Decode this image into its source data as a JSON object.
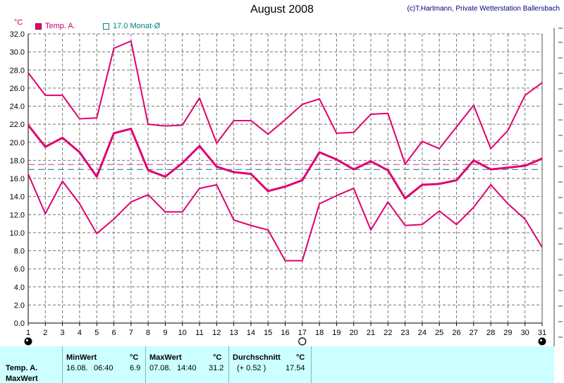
{
  "header": {
    "title": "August 2008",
    "credit": "(c)T.Hartmann, Private Wetterstation Ballersbach",
    "unit": "°C"
  },
  "legend": [
    {
      "label": "Temp. A.",
      "color": "#e0006f"
    },
    {
      "label": "17.0 Monat-Ø",
      "color": "#00807a"
    }
  ],
  "chart_data": {
    "type": "line",
    "x": [
      1,
      2,
      3,
      4,
      5,
      6,
      7,
      8,
      9,
      10,
      11,
      12,
      13,
      14,
      15,
      16,
      17,
      18,
      19,
      20,
      21,
      22,
      23,
      24,
      25,
      26,
      27,
      28,
      29,
      30,
      31
    ],
    "xlim": [
      1,
      31
    ],
    "ylim": [
      0,
      32
    ],
    "yticks": [
      "0.0",
      "2.0",
      "4.0",
      "6.0",
      "8.0",
      "10.0",
      "12.0",
      "14.0",
      "16.0",
      "18.0",
      "20.0",
      "22.0",
      "24.0",
      "26.0",
      "28.0",
      "30.0",
      "32.0"
    ],
    "grid": true,
    "series": [
      {
        "role": "max",
        "color": "#e0006f",
        "width": 2,
        "values": [
          27.7,
          25.2,
          25.2,
          22.6,
          22.7,
          30.4,
          31.2,
          22.0,
          21.8,
          21.9,
          24.9,
          19.9,
          22.4,
          22.4,
          20.9,
          22.5,
          24.2,
          24.8,
          21.0,
          21.1,
          23.1,
          23.2,
          17.6,
          20.1,
          19.3,
          21.7,
          24.1,
          19.3,
          21.3,
          25.2,
          26.6
        ]
      },
      {
        "role": "mean",
        "color": "#e0006f",
        "width": 3,
        "values": [
          21.9,
          19.5,
          20.5,
          18.9,
          16.2,
          21.0,
          21.5,
          16.9,
          16.2,
          17.7,
          19.6,
          17.3,
          16.7,
          16.5,
          14.6,
          15.1,
          15.8,
          18.9,
          18.1,
          17.0,
          17.9,
          16.9,
          13.8,
          15.3,
          15.4,
          15.8,
          18.0,
          17.0,
          17.2,
          17.4,
          18.2
        ]
      },
      {
        "role": "min",
        "color": "#e0006f",
        "width": 2,
        "values": [
          16.5,
          12.1,
          15.7,
          13.2,
          9.9,
          11.5,
          13.4,
          14.2,
          12.3,
          12.3,
          14.9,
          15.3,
          11.4,
          10.8,
          10.3,
          6.9,
          6.9,
          13.2,
          14.1,
          14.9,
          10.3,
          13.4,
          10.8,
          10.9,
          12.4,
          10.9,
          12.8,
          15.3,
          13.2,
          11.5,
          8.4
        ]
      }
    ],
    "reference_lines": [
      {
        "label": "17.0 Monat-Ø",
        "value": 17.0,
        "color": "#00807a"
      },
      {
        "value": 17.54,
        "color": "#cc3399"
      }
    ],
    "moon_days": [
      {
        "day": 1,
        "phase": "new"
      },
      {
        "day": 17,
        "phase": "full"
      },
      {
        "day": 31,
        "phase": "new"
      }
    ]
  },
  "stats": {
    "row_label_1": "Temp. A.",
    "row_label_2": "MaxWert",
    "min": {
      "header": "MinWert",
      "unit": "°C",
      "date": "16.08.",
      "time": "06:40",
      "value": "6.9"
    },
    "max": {
      "header": "MaxWert",
      "unit": "°C",
      "date": "07.08.",
      "time": "14:40",
      "value": "31.2"
    },
    "avg": {
      "header": "Durchschnitt",
      "unit": "°C",
      "delta": "(+ 0.52 )",
      "value": "17.54"
    }
  }
}
